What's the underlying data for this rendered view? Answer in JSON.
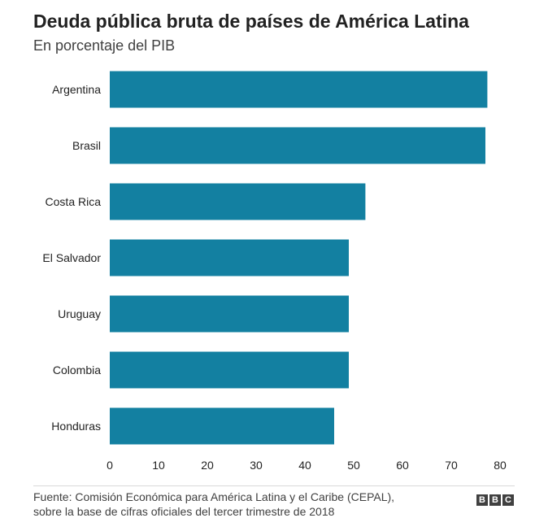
{
  "chart_data": {
    "type": "bar",
    "orientation": "horizontal",
    "title": "Deuda pública bruta de países de América Latina",
    "subtitle": "En porcentaje del PIB",
    "categories": [
      "Argentina",
      "Brasil",
      "Costa Rica",
      "El Salvador",
      "Uruguay",
      "Colombia",
      "Honduras"
    ],
    "values": [
      77.4,
      77.0,
      52.4,
      49.0,
      49.0,
      49.0,
      46.0
    ],
    "xlim": [
      0,
      80
    ],
    "xticks": [
      "0",
      "10",
      "20",
      "30",
      "40",
      "50",
      "60",
      "70",
      "80"
    ],
    "xlabel": "",
    "ylabel": "",
    "grid": false,
    "bar_color": "#1380a1"
  },
  "source_lines": [
    "Fuente: Comisión Económica para América Latina y el Caribe (CEPAL),",
    "sobre la base de cifras oficiales del tercer trimestre de 2018"
  ],
  "logo_letters": [
    "B",
    "B",
    "C"
  ]
}
